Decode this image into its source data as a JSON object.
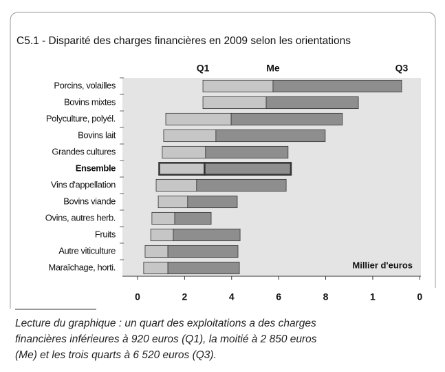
{
  "chart_data": {
    "type": "floating_bar",
    "title": "C5.1 - Disparité des charges financières en 2009 selon les orientations",
    "categories": [
      "Porcins, volailles",
      "Bovins mixtes",
      "Polyculture, polyél.",
      "Bovins lait",
      "Grandes cultures",
      "Ensemble",
      "Vins d'appellation",
      "Bovins viande",
      "Ovins, autres herb.",
      "Fruits",
      "Autre viticulture",
      "Maraîchage, horti."
    ],
    "series": [
      {
        "name": "Q1",
        "values": [
          2.78,
          2.78,
          1.2,
          1.11,
          1.05,
          0.92,
          0.79,
          0.88,
          0.61,
          0.56,
          0.32,
          0.26
        ]
      },
      {
        "name": "Me",
        "color": "#c6c6c6",
        "values": [
          5.76,
          5.47,
          3.98,
          3.33,
          2.89,
          2.85,
          2.51,
          2.13,
          1.58,
          1.52,
          1.29,
          1.29
        ]
      },
      {
        "name": "Q3",
        "color": "#8e8e8e",
        "values": [
          11.23,
          9.39,
          8.71,
          7.98,
          6.4,
          6.52,
          6.32,
          4.24,
          3.13,
          4.36,
          4.27,
          4.33
        ]
      }
    ],
    "highlight": "Ensemble",
    "xlim": [
      0,
      12.4
    ],
    "xticks": [
      0,
      2,
      4,
      6,
      8,
      {
        "value": 10,
        "label": "1"
      },
      {
        "value": 12,
        "label": "0"
      }
    ],
    "annotation": "Millier d'euros",
    "footnote": [
      "Lecture du graphique : un quart des exploitations a des charges",
      "financières inférieures à 920 euros (Q1), la moitié à 2 850 euros",
      "(Me) et les trois quarts à 6 520 euros (Q3)."
    ]
  }
}
